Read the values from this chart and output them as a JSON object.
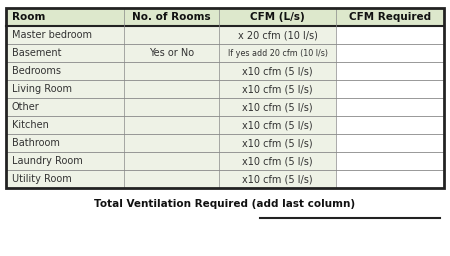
{
  "header": [
    "Room",
    "No. of Rooms",
    "CFM (L/s)",
    "CFM Required"
  ],
  "rows": [
    [
      "Master bedroom",
      "",
      "x 20 cfm (10 l/s)",
      ""
    ],
    [
      "Basement",
      "Yes or No",
      "If yes add 20 cfm (10 l/s)",
      ""
    ],
    [
      "Bedrooms",
      "",
      "x10 cfm (5 l/s)",
      ""
    ],
    [
      "Living Room",
      "",
      "x10 cfm (5 l/s)",
      ""
    ],
    [
      "Other",
      "",
      "x10 cfm (5 l/s)",
      ""
    ],
    [
      "Kitchen",
      "",
      "x10 cfm (5 l/s)",
      ""
    ],
    [
      "Bathroom",
      "",
      "x10 cfm (5 l/s)",
      ""
    ],
    [
      "Laundry Room",
      "",
      "x10 cfm (5 l/s)",
      ""
    ],
    [
      "Utility Room",
      "",
      "x10 cfm (5 l/s)",
      ""
    ]
  ],
  "footer_text": "Total Ventilation Required (add last column)",
  "bg_color": "#eef2e6",
  "header_bg": "#dde8cc",
  "white_bg": "#ffffff",
  "outer_border_color": "#222222",
  "inner_line_color": "#888888",
  "header_font_size": 7.5,
  "row_font_size": 7.0,
  "basement_cfm_font_size": 5.8,
  "footer_font_size": 7.5
}
